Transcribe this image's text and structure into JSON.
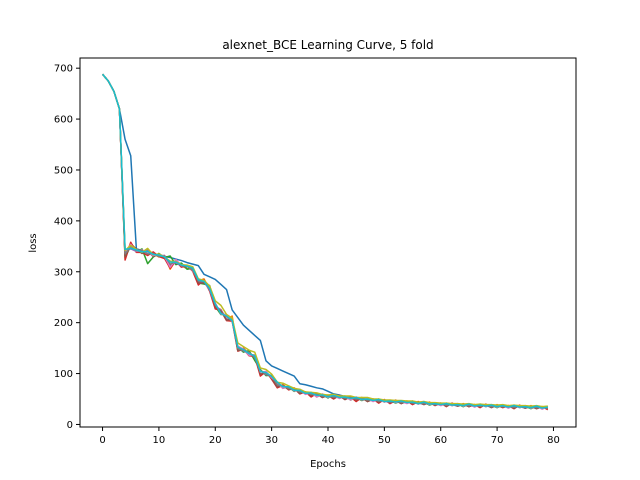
{
  "chart_data": {
    "type": "line",
    "title": "alexnet_BCE Learning Curve, 5 fold",
    "xlabel": "Epochs",
    "ylabel": "loss",
    "xlim": [
      -4,
      84
    ],
    "ylim": [
      -5,
      720
    ],
    "xticks": [
      0,
      10,
      20,
      30,
      40,
      50,
      60,
      70,
      80
    ],
    "yticks": [
      0,
      100,
      200,
      300,
      400,
      500,
      600,
      700
    ],
    "grid": false,
    "legend": "none",
    "base_series": {
      "x": [
        0,
        1,
        2,
        3,
        4,
        5,
        6,
        7,
        8,
        9,
        10,
        11,
        12,
        13,
        14,
        15,
        16,
        17,
        18,
        19,
        20,
        21,
        22,
        23,
        24,
        25,
        26,
        27,
        28,
        29,
        30,
        31,
        32,
        33,
        34,
        35,
        36,
        37,
        38,
        39,
        40,
        41,
        42,
        43,
        44,
        45,
        46,
        47,
        48,
        49,
        50,
        51,
        52,
        53,
        54,
        55,
        56,
        57,
        58,
        59,
        60,
        61,
        62,
        63,
        64,
        65,
        66,
        67,
        68,
        69,
        70,
        71,
        72,
        73,
        74,
        75,
        76,
        77,
        78,
        79
      ],
      "values": [
        688,
        675,
        655,
        620,
        345,
        348,
        342,
        340,
        338,
        335,
        332,
        330,
        325,
        318,
        314,
        310,
        305,
        290,
        280,
        268,
        235,
        220,
        210,
        205,
        148,
        145,
        140,
        132,
        105,
        100,
        95,
        80,
        75,
        72,
        68,
        65,
        62,
        60,
        58,
        57,
        55,
        55,
        54,
        53,
        52,
        51,
        50,
        49,
        48,
        47,
        46,
        45,
        45,
        44,
        44,
        43,
        42,
        42,
        41,
        40,
        40,
        39,
        39,
        38,
        38,
        38,
        37,
        37,
        37,
        36,
        36,
        36,
        35,
        35,
        35,
        34,
        34,
        34,
        33,
        33
      ]
    },
    "series": [
      {
        "color": "#1f77b4",
        "values": [
          688,
          675,
          655,
          620,
          560,
          528,
          345,
          342,
          338,
          335,
          332,
          330,
          328,
          325,
          322,
          318,
          315,
          312,
          295,
          290,
          285,
          275,
          265,
          225,
          210,
          195,
          185,
          175,
          165,
          125,
          115,
          110,
          105,
          100,
          95,
          80,
          78,
          75,
          72,
          70,
          65,
          60,
          58,
          55,
          53,
          52,
          50,
          49,
          48,
          47,
          46,
          45,
          45,
          44,
          44,
          43,
          42,
          42,
          41,
          40,
          40,
          39,
          39,
          38,
          38,
          38,
          37,
          37,
          37,
          36,
          36,
          36,
          35,
          35,
          35,
          34,
          34,
          34,
          33,
          33
        ]
      },
      {
        "color": "#ff7f0e",
        "offsets": [
          0,
          0,
          0,
          0,
          -12,
          8,
          2,
          -4,
          6,
          0,
          -3,
          2,
          -20,
          5,
          -2,
          -4,
          2,
          -8,
          6,
          -3,
          -5,
          6,
          -4,
          8,
          -3,
          5,
          -2,
          4,
          -8,
          3,
          -2,
          -5,
          3,
          -2,
          4,
          -3,
          2,
          -4,
          3,
          -2,
          3,
          -4,
          2,
          -3,
          2,
          -4,
          3,
          -2,
          2,
          -3,
          2,
          -2,
          3,
          -2,
          2,
          -3,
          2,
          -2,
          3,
          -2,
          2,
          -3,
          2,
          -2,
          3,
          -2,
          2,
          -3,
          2,
          -2,
          3,
          -2,
          2,
          -3,
          2,
          -2,
          3,
          -2,
          2,
          -3
        ]
      },
      {
        "color": "#2ca02c",
        "offsets": [
          0,
          0,
          0,
          0,
          -18,
          4,
          -3,
          5,
          -22,
          -6,
          4,
          -2,
          6,
          -4,
          3,
          -5,
          2,
          -12,
          -4,
          5,
          -3,
          -4,
          6,
          -2,
          4,
          -3,
          5,
          -6,
          3,
          -4,
          2,
          3,
          -4,
          2,
          -3,
          4,
          -2,
          3,
          -4,
          2,
          -3,
          4,
          -2,
          3,
          -4,
          2,
          -3,
          2,
          -2,
          3,
          -2,
          2,
          -3,
          2,
          -2,
          3,
          -2,
          2,
          -3,
          2,
          -2,
          3,
          -2,
          2,
          -3,
          2,
          -2,
          3,
          -2,
          2,
          -3,
          2,
          -2,
          3,
          -2,
          2,
          -3,
          2,
          -2,
          3
        ]
      },
      {
        "color": "#d62728",
        "offsets": [
          0,
          0,
          0,
          0,
          -22,
          10,
          -4,
          -2,
          -6,
          4,
          -2,
          -4,
          -18,
          3,
          -5,
          2,
          -4,
          -16,
          4,
          -6,
          -8,
          4,
          -6,
          -2,
          -4,
          3,
          -5,
          2,
          -10,
          4,
          -6,
          -8,
          2,
          -4,
          3,
          -5,
          2,
          -6,
          3,
          -4,
          2,
          -5,
          3,
          -4,
          2,
          -6,
          3,
          -4,
          2,
          -5,
          3,
          -4,
          2,
          -3,
          2,
          -4,
          3,
          -2,
          2,
          -3,
          2,
          -4,
          3,
          -2,
          2,
          -3,
          2,
          -4,
          3,
          -2,
          2,
          -3,
          2,
          -4,
          3,
          -2,
          2,
          -3,
          2,
          -4
        ]
      },
      {
        "color": "#9467bd",
        "offsets": [
          0,
          0,
          0,
          0,
          -5,
          -3,
          -2,
          0,
          4,
          -2,
          0,
          2,
          -12,
          0,
          -3,
          0,
          2,
          -10,
          0,
          -4,
          -2,
          5,
          -3,
          0,
          2,
          0,
          -2,
          3,
          0,
          -2,
          0,
          -4,
          0,
          -2,
          2,
          0,
          -2,
          2,
          0,
          -2,
          2,
          0,
          -2,
          2,
          0,
          -2,
          2,
          0,
          -2,
          2,
          0,
          -2,
          2,
          0,
          -2,
          2,
          0,
          -2,
          2,
          0,
          -2,
          2,
          0,
          -2,
          2,
          0,
          -2,
          2,
          0,
          -2,
          2,
          0,
          -2,
          2,
          0,
          -2,
          2,
          0,
          -2,
          2
        ]
      },
      {
        "color": "#8c564b",
        "offsets": [
          0,
          0,
          0,
          0,
          -15,
          5,
          3,
          -4,
          2,
          -5,
          3,
          -2,
          -14,
          4,
          -3,
          0,
          3,
          -12,
          -2,
          4,
          -4,
          3,
          -5,
          2,
          -3,
          4,
          -2,
          3,
          -6,
          2,
          -4,
          -6,
          2,
          -3,
          3,
          -4,
          2,
          -3,
          2,
          -4,
          2,
          -3,
          2,
          -4,
          2,
          -3,
          2,
          -4,
          2,
          -3,
          2,
          -2,
          2,
          -3,
          2,
          -2,
          2,
          -3,
          2,
          -2,
          2,
          -3,
          2,
          -2,
          2,
          -3,
          2,
          -2,
          2,
          -3,
          2,
          -2,
          2,
          -3,
          2,
          -2,
          2,
          -3,
          2,
          -2
        ]
      },
      {
        "color": "#e377c2",
        "offsets": [
          0,
          0,
          0,
          0,
          -8,
          6,
          -2,
          3,
          0,
          -3,
          2,
          0,
          -16,
          6,
          -2,
          3,
          -3,
          -6,
          2,
          -2,
          4,
          -3,
          5,
          -2,
          6,
          3,
          -4,
          5,
          -2,
          4,
          -3,
          2,
          -4,
          3,
          -2,
          2,
          -3,
          2,
          -4,
          3,
          -2,
          2,
          -3,
          2,
          -4,
          3,
          -2,
          2,
          -3,
          2,
          -2,
          3,
          -2,
          2,
          -3,
          2,
          -2,
          3,
          -2,
          2,
          -3,
          2,
          -2,
          3,
          -2,
          2,
          -3,
          2,
          -2,
          3,
          -2,
          2,
          -3,
          2,
          -2,
          3,
          -2,
          2,
          -3,
          2
        ]
      },
      {
        "color": "#7f7f7f",
        "offsets": [
          0,
          0,
          0,
          0,
          -10,
          2,
          -1,
          2,
          -3,
          1,
          -2,
          1,
          -10,
          2,
          -1,
          1,
          -2,
          -8,
          1,
          -2,
          1,
          -1,
          2,
          -1,
          1,
          -1,
          2,
          -1,
          1,
          -1,
          1,
          -2,
          1,
          -1,
          1,
          -1,
          1,
          -1,
          1,
          -1,
          1,
          -1,
          1,
          -1,
          1,
          -1,
          1,
          -1,
          1,
          -1,
          1,
          -1,
          1,
          -1,
          1,
          -1,
          1,
          -1,
          1,
          -1,
          1,
          -1,
          1,
          -1,
          1,
          -1,
          1,
          -1,
          1,
          -1,
          1,
          -1,
          1,
          -1,
          1,
          -1,
          1,
          -1,
          1,
          -1
        ]
      },
      {
        "color": "#bcbd22",
        "offsets": [
          0,
          0,
          0,
          0,
          -3,
          4,
          2,
          -2,
          8,
          -2,
          3,
          -1,
          -4,
          2,
          0,
          3,
          5,
          -4,
          3,
          4,
          8,
          14,
          6,
          4,
          12,
          8,
          6,
          10,
          6,
          8,
          4,
          3,
          6,
          4,
          3,
          4,
          2,
          3,
          4,
          2,
          3,
          4,
          2,
          3,
          4,
          2,
          3,
          4,
          2,
          3,
          2,
          3,
          2,
          3,
          2,
          3,
          2,
          3,
          2,
          3,
          2,
          3,
          2,
          3,
          2,
          3,
          2,
          3,
          2,
          3,
          2,
          3,
          2,
          3,
          2,
          3,
          2,
          3,
          2,
          3
        ]
      },
      {
        "color": "#17becf",
        "offsets": [
          0,
          0,
          0,
          0,
          -1,
          -2,
          1,
          -1,
          2,
          -1,
          1,
          -1,
          -6,
          1,
          -1,
          1,
          2,
          -6,
          1,
          -1,
          2,
          -2,
          3,
          -1,
          4,
          2,
          -1,
          3,
          -1,
          2,
          -1,
          3,
          -1,
          2,
          -1,
          2,
          -1,
          2,
          -1,
          1,
          -1,
          2,
          -1,
          1,
          -1,
          2,
          -1,
          1,
          -1,
          2,
          -1,
          1,
          -1,
          2,
          -1,
          1,
          -1,
          2,
          -1,
          1,
          -1,
          2,
          -1,
          1,
          -1,
          2,
          -1,
          1,
          -1,
          2,
          -1,
          1,
          -1,
          2,
          -1,
          1,
          -1,
          2,
          -1,
          1
        ]
      }
    ]
  }
}
